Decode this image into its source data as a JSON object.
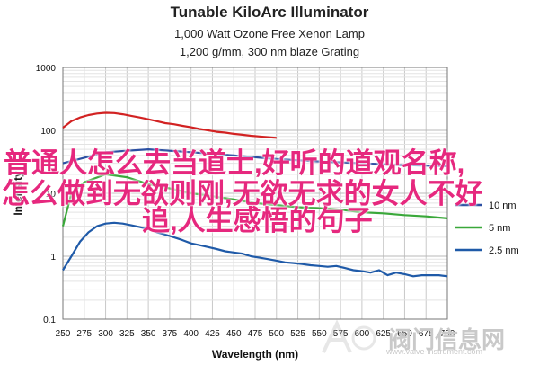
{
  "chart_data": {
    "type": "line",
    "title": "Tunable KiloArc Illuminator",
    "subtitle_lines": [
      "1,000 Watt Ozone Free Xenon Lamp",
      "1,200 g/mm, 300 nm blaze Grating"
    ],
    "xlabel": "Wavelength (nm)",
    "ylabel": "Intensity",
    "xlim": [
      250,
      700
    ],
    "ylim": [
      0.1,
      1000
    ],
    "y_scale": "log",
    "x_ticks": [
      "250",
      "275",
      "300",
      "325",
      "350",
      "375",
      "400",
      "425",
      "450",
      "475",
      "500",
      "525",
      "550",
      "575",
      "600",
      "625",
      "650",
      "675",
      "700"
    ],
    "y_ticks": [
      "0.1",
      "1",
      "10",
      "100",
      "1000"
    ],
    "grid": true,
    "legend_position": "right",
    "series": [
      {
        "name": "",
        "color": "#d22222",
        "x": [
          250,
          260,
          270,
          280,
          290,
          300,
          310,
          320,
          330,
          340,
          350,
          360,
          370,
          380,
          390,
          400,
          410,
          420,
          430,
          440,
          450,
          460,
          470,
          480,
          490,
          500
        ],
        "y": [
          110,
          140,
          160,
          175,
          185,
          190,
          188,
          180,
          170,
          160,
          150,
          140,
          130,
          125,
          118,
          112,
          105,
          100,
          95,
          92,
          88,
          85,
          82,
          80,
          78,
          76
        ]
      },
      {
        "name": "10 nm",
        "color": "#2b4fa2",
        "x": [
          250,
          300,
          350,
          400,
          450,
          500,
          550,
          600,
          650,
          700
        ],
        "y": [
          30,
          45,
          50,
          45,
          40,
          35,
          32,
          30,
          28,
          27
        ]
      },
      {
        "name": "5 nm",
        "color": "#3aa83a",
        "x": [
          250,
          260,
          275,
          300,
          325,
          350,
          375,
          400,
          425,
          450,
          475,
          500,
          525,
          550,
          575,
          600,
          625,
          650,
          675,
          700
        ],
        "y": [
          3,
          10,
          15,
          20,
          18,
          14,
          12,
          10,
          9,
          8,
          7,
          6.5,
          6,
          5.8,
          5.5,
          5,
          4.8,
          4.5,
          4.3,
          4
        ]
      },
      {
        "name": "2.5 nm",
        "color": "#1f5aa8",
        "x": [
          250,
          260,
          270,
          280,
          290,
          300,
          310,
          320,
          330,
          340,
          350,
          360,
          370,
          380,
          390,
          400,
          410,
          420,
          430,
          440,
          450,
          460,
          470,
          480,
          490,
          500,
          510,
          520,
          530,
          540,
          550,
          560,
          570,
          580,
          590,
          600,
          610,
          620,
          630,
          640,
          650,
          660,
          670,
          680,
          690,
          700
        ],
        "y": [
          0.6,
          1.0,
          1.7,
          2.4,
          3.0,
          3.3,
          3.4,
          3.3,
          3.1,
          2.9,
          2.7,
          2.4,
          2.2,
          2.0,
          1.8,
          1.6,
          1.5,
          1.4,
          1.3,
          1.2,
          1.15,
          1.1,
          1.0,
          0.95,
          0.9,
          0.85,
          0.8,
          0.78,
          0.75,
          0.72,
          0.7,
          0.68,
          0.7,
          0.65,
          0.6,
          0.58,
          0.55,
          0.6,
          0.5,
          0.55,
          0.52,
          0.48,
          0.5,
          0.5,
          0.5,
          0.48
        ]
      }
    ]
  },
  "overlay_text": {
    "line1": "普通人怎么去当道士,好听的道观名称,",
    "line2": "怎么做到无欲则刚,无欲无求的女人不好",
    "line3": "追,人生感悟的句子"
  },
  "watermark": {
    "text": "阀门信息网",
    "url": "www.valve-instrument.com"
  }
}
